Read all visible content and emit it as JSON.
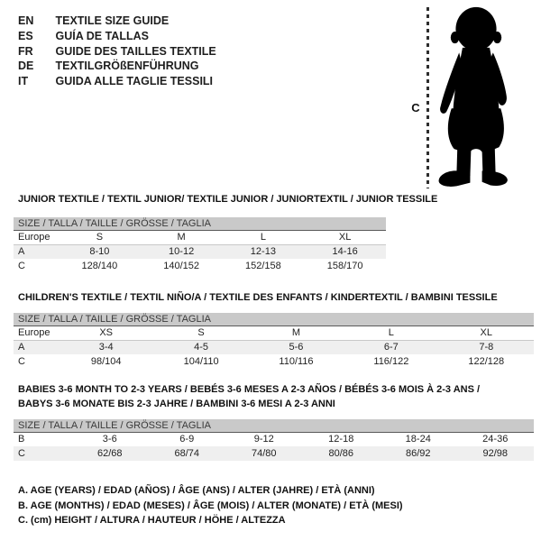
{
  "header": {
    "languages": [
      {
        "code": "EN",
        "label": "TEXTILE SIZE GUIDE"
      },
      {
        "code": "ES",
        "label": "GUÍA DE TALLAS"
      },
      {
        "code": "FR",
        "label": "GUIDE DES TAILLES TEXTILE"
      },
      {
        "code": "DE",
        "label": "TEXTILGRÖßENFÜHRUNG"
      },
      {
        "code": "IT",
        "label": "GUIDA ALLE TAGLIE TESSILI"
      }
    ]
  },
  "figure": {
    "label": "C",
    "icon": "baby-silhouette"
  },
  "tables": [
    {
      "title": "JUNIOR TEXTILE / TEXTIL JUNIOR/ TEXTILE JUNIOR / JUNIORTEXTIL / JUNIOR TESSILE",
      "size_header": "SIZE / TALLA / TAILLE / GRÖSSE / TAGLIA",
      "rows": [
        {
          "label": "Europe",
          "values": [
            "S",
            "M",
            "L",
            "XL"
          ]
        },
        {
          "label": "A",
          "values": [
            "8-10",
            "10-12",
            "12-13",
            "14-16"
          ]
        },
        {
          "label": "C",
          "values": [
            "128/140",
            "140/152",
            "152/158",
            "158/170"
          ]
        }
      ]
    },
    {
      "title": "CHILDREN'S TEXTILE / TEXTIL NIÑO/A / TEXTILE DES ENFANTS / KINDERTEXTIL / BAMBINI TESSILE",
      "size_header": "SIZE / TALLA / TAILLE / GRÖSSE / TAGLIA",
      "rows": [
        {
          "label": "Europe",
          "values": [
            "XS",
            "S",
            "M",
            "L",
            "XL"
          ]
        },
        {
          "label": "A",
          "values": [
            "3-4",
            "4-5",
            "5-6",
            "6-7",
            "7-8"
          ]
        },
        {
          "label": "C",
          "values": [
            "98/104",
            "104/110",
            "110/116",
            "116/122",
            "122/128"
          ]
        }
      ]
    },
    {
      "title": "BABIES 3-6 MONTH TO 2-3 YEARS / BEBÉS 3-6 MESES A 2-3 AÑOS / BÉBÉS 3-6 MOIS À 2-3 ANS /",
      "title2": "BABYS 3-6 MONATE BIS 2-3 JAHRE / BAMBINI 3-6 MESI A 2-3 ANNI",
      "size_header": "SIZE / TALLA / TAILLE / GRÖSSE / TAGLIA",
      "rows": [
        {
          "label": "B",
          "values": [
            "3-6",
            "6-9",
            "9-12",
            "12-18",
            "18-24",
            "24-36"
          ]
        },
        {
          "label": "C",
          "values": [
            "62/68",
            "68/74",
            "74/80",
            "80/86",
            "86/92",
            "92/98"
          ]
        }
      ]
    }
  ],
  "footnotes": [
    "A. AGE (YEARS) / EDAD (AÑOS) / ÂGE (ANS) / ALTER (JAHRE) / ETÀ (ANNI)",
    "B. AGE (MONTHS) / EDAD (MESES) / ÂGE (MOIS) / ALTER (MONATE) / ETÀ (MESI)",
    "C. (cm) HEIGHT / ALTURA / HAUTEUR / HÖHE / ALTEZZA"
  ],
  "colors": {
    "size_header_bar": "#c9c9c9",
    "shaded_row": "#efefef",
    "silhouette": "#000000",
    "text": "#1e1e1e"
  }
}
